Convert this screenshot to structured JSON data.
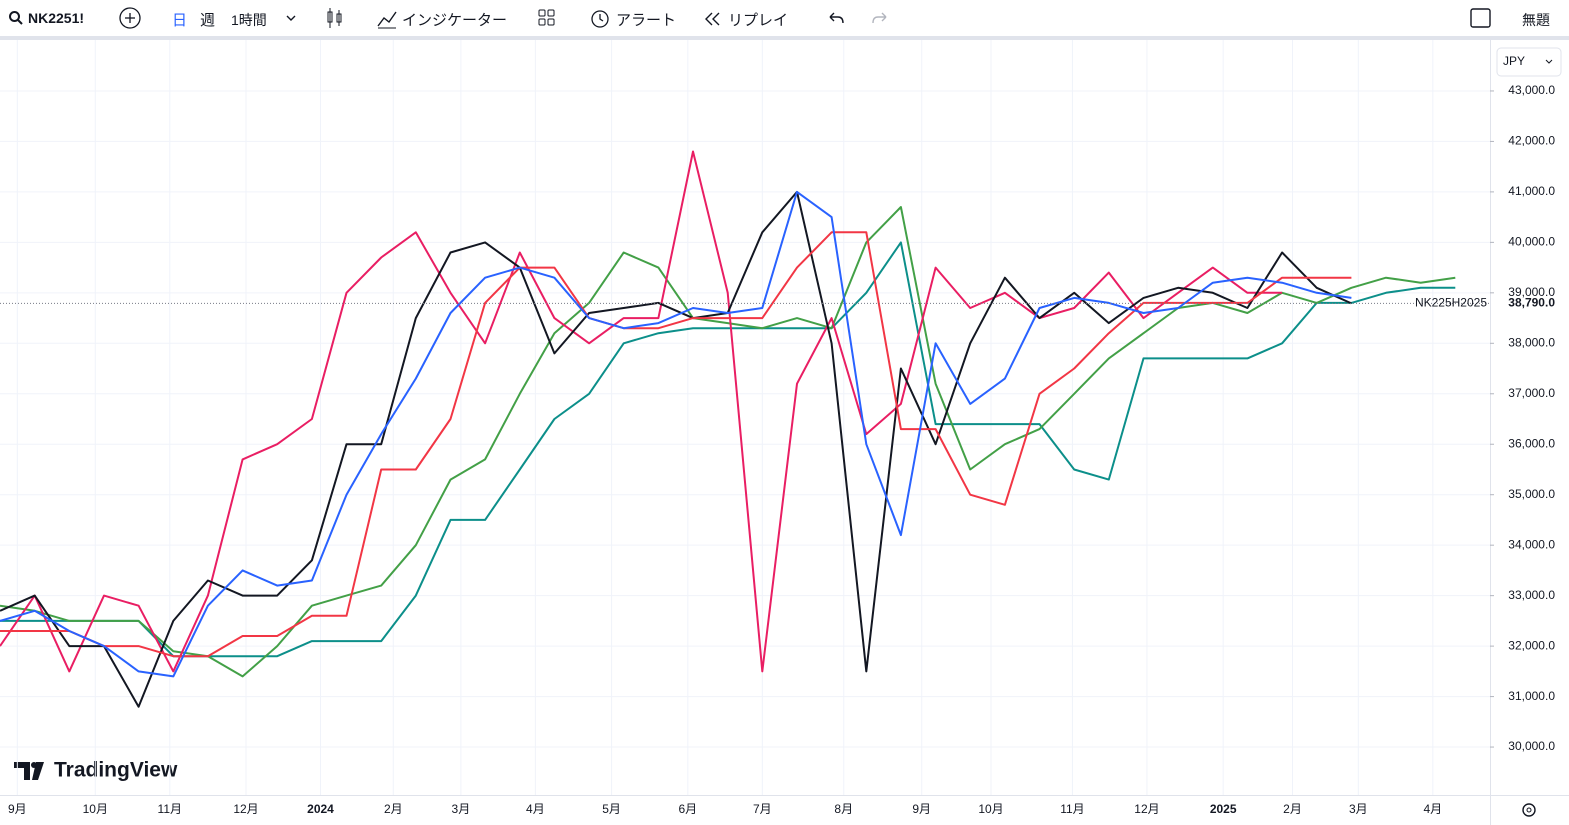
{
  "toolbar": {
    "symbol": "NK2251!",
    "day": "日",
    "week": "週",
    "interval": "1時間",
    "indicators": "インジケーター",
    "alert": "アラート",
    "replay": "リプレイ",
    "layout_name": "無題"
  },
  "currency": "JPY",
  "logo": "TradingView",
  "chart_data": {
    "type": "line",
    "x": [
      0,
      2,
      4,
      6,
      8,
      10,
      12,
      14,
      16,
      18,
      20,
      22,
      24,
      26,
      28,
      30,
      32,
      34,
      36,
      38,
      40,
      42,
      44,
      46,
      48,
      50,
      52,
      54,
      56,
      58,
      60,
      62,
      64,
      66,
      68,
      70,
      72,
      74,
      76,
      78,
      80,
      82,
      84
    ],
    "xlim": [
      0,
      86
    ],
    "xticks": [
      {
        "value": 1.0,
        "label": "9月"
      },
      {
        "value": 5.5,
        "label": "10月"
      },
      {
        "value": 9.8,
        "label": "11月"
      },
      {
        "value": 14.2,
        "label": "12月"
      },
      {
        "value": 18.5,
        "label": "2024"
      },
      {
        "value": 22.7,
        "label": "2月"
      },
      {
        "value": 26.6,
        "label": "3月"
      },
      {
        "value": 30.9,
        "label": "4月"
      },
      {
        "value": 35.3,
        "label": "5月"
      },
      {
        "value": 39.7,
        "label": "6月"
      },
      {
        "value": 44.0,
        "label": "7月"
      },
      {
        "value": 48.7,
        "label": "8月"
      },
      {
        "value": 53.2,
        "label": "9月"
      },
      {
        "value": 57.2,
        "label": "10月"
      },
      {
        "value": 61.9,
        "label": "11月"
      },
      {
        "value": 66.2,
        "label": "12月"
      },
      {
        "value": 70.6,
        "label": "2025"
      },
      {
        "value": 74.6,
        "label": "2月"
      },
      {
        "value": 78.4,
        "label": "3月"
      },
      {
        "value": 82.7,
        "label": "4月"
      }
    ],
    "ylim": [
      29050,
      43970
    ],
    "yticks": [
      {
        "value": 30000,
        "label": "30,000.0"
      },
      {
        "value": 31000,
        "label": "31,000.0"
      },
      {
        "value": 32000,
        "label": "32,000.0"
      },
      {
        "value": 33000,
        "label": "33,000.0"
      },
      {
        "value": 34000,
        "label": "34,000.0"
      },
      {
        "value": 35000,
        "label": "35,000.0"
      },
      {
        "value": 36000,
        "label": "36,000.0"
      },
      {
        "value": 37000,
        "label": "37,000.0"
      },
      {
        "value": 38000,
        "label": "38,000.0"
      },
      {
        "value": 39000,
        "label": "39,000.0"
      },
      {
        "value": 40000,
        "label": "40,000.0"
      },
      {
        "value": 41000,
        "label": "41,000.0"
      },
      {
        "value": 42000,
        "label": "42,000.0"
      },
      {
        "value": 43000,
        "label": "43,000.0"
      }
    ],
    "grid": true,
    "price_label": {
      "value": 38790,
      "label": "38,790.0"
    },
    "symbol_label": "NK225H2025",
    "series": [
      {
        "color": "#0c8f8a",
        "values": [
          32500,
          32500,
          32500,
          32500,
          32500,
          31800,
          31800,
          31800,
          31800,
          32100,
          32100,
          32100,
          33000,
          34500,
          34500,
          35500,
          36500,
          37000,
          38000,
          38200,
          38300,
          38300,
          38300,
          38300,
          38300,
          39000,
          40000,
          36400,
          36400,
          36400,
          36400,
          35500,
          35300,
          37700,
          37700,
          37700,
          37700,
          38000,
          38800,
          38800,
          39000,
          39100,
          39100
        ]
      },
      {
        "color": "#43a047",
        "values": [
          32800,
          32700,
          32500,
          32500,
          32500,
          31900,
          31800,
          31400,
          32000,
          32800,
          33000,
          33200,
          34000,
          35300,
          35700,
          37000,
          38200,
          38800,
          39800,
          39500,
          38500,
          38400,
          38300,
          38500,
          38300,
          40000,
          40700,
          37200,
          35500,
          36000,
          36300,
          37000,
          37700,
          38200,
          38700,
          38800,
          38600,
          39000,
          38800,
          39100,
          39300,
          39200,
          39300
        ]
      },
      {
        "color": "#e91e63",
        "values": [
          32000,
          33000,
          31500,
          33000,
          32800,
          31500,
          33000,
          35700,
          36000,
          36500,
          39000,
          39700,
          40200,
          39000,
          38000,
          39800,
          38500,
          38000,
          38500,
          38500,
          41800,
          39000,
          31500,
          37200,
          38500,
          36200,
          36800,
          39500,
          38700,
          39000,
          38500,
          38700,
          39400,
          38500,
          39000,
          39500,
          39000,
          39000,
          null,
          null,
          null,
          null,
          null
        ]
      },
      {
        "color": "#131722",
        "values": [
          32700,
          33000,
          32000,
          32000,
          30800,
          32500,
          33300,
          33000,
          33000,
          33700,
          36000,
          36000,
          38500,
          39800,
          40000,
          39500,
          37800,
          38600,
          38700,
          38800,
          38500,
          38600,
          40200,
          41000,
          38000,
          31500,
          37500,
          36000,
          38000,
          39300,
          38500,
          39000,
          38400,
          38900,
          39100,
          39000,
          38700,
          39800,
          39100,
          38790,
          null,
          null,
          null
        ]
      },
      {
        "color": "#f23645",
        "values": [
          32300,
          32300,
          32300,
          32000,
          32000,
          31800,
          31800,
          32200,
          32200,
          32600,
          32600,
          35500,
          35500,
          36500,
          38800,
          39500,
          39500,
          38500,
          38300,
          38300,
          38500,
          38500,
          38500,
          39500,
          40200,
          40200,
          36300,
          36300,
          35000,
          34800,
          37000,
          37500,
          38200,
          38800,
          38800,
          38800,
          38800,
          39300,
          39300,
          39300,
          null,
          null,
          null
        ]
      },
      {
        "color": "#2962ff",
        "values": [
          32500,
          32700,
          32300,
          32000,
          31500,
          31400,
          32800,
          33500,
          33200,
          33300,
          35000,
          36200,
          37300,
          38600,
          39300,
          39500,
          39300,
          38500,
          38300,
          38400,
          38700,
          38600,
          38700,
          41000,
          40500,
          36000,
          34200,
          38000,
          36800,
          37300,
          38700,
          38900,
          38800,
          38600,
          38700,
          39200,
          39300,
          39200,
          39000,
          38900,
          null,
          null,
          null
        ]
      }
    ]
  }
}
